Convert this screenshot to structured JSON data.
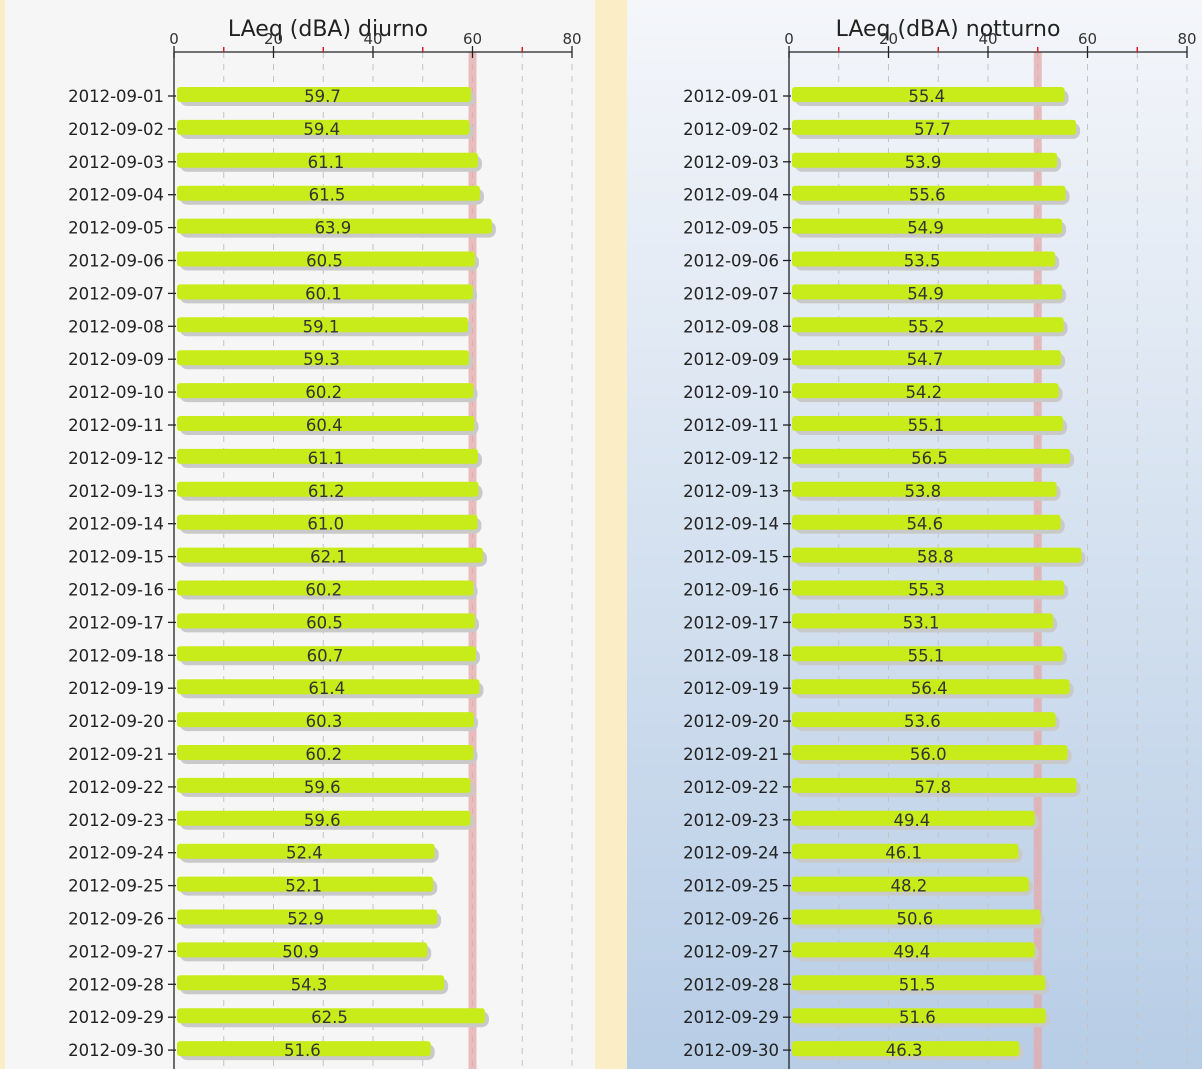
{
  "chart_data": [
    {
      "type": "bar",
      "orientation": "horizontal",
      "title": "LAeq (dBA) diurno",
      "xlim": [
        0,
        80
      ],
      "xticks": [
        "0",
        "20",
        "40",
        "60",
        "80"
      ],
      "threshold": 60,
      "grid": true,
      "categories": [
        "2012-09-01",
        "2012-09-02",
        "2012-09-03",
        "2012-09-04",
        "2012-09-05",
        "2012-09-06",
        "2012-09-07",
        "2012-09-08",
        "2012-09-09",
        "2012-09-10",
        "2012-09-11",
        "2012-09-12",
        "2012-09-13",
        "2012-09-14",
        "2012-09-15",
        "2012-09-16",
        "2012-09-17",
        "2012-09-18",
        "2012-09-19",
        "2012-09-20",
        "2012-09-21",
        "2012-09-22",
        "2012-09-23",
        "2012-09-24",
        "2012-09-25",
        "2012-09-26",
        "2012-09-27",
        "2012-09-28",
        "2012-09-29",
        "2012-09-30"
      ],
      "values": [
        59.7,
        59.4,
        61.1,
        61.5,
        63.9,
        60.5,
        60.1,
        59.1,
        59.3,
        60.2,
        60.4,
        61.1,
        61.2,
        61.0,
        62.1,
        60.2,
        60.5,
        60.7,
        61.4,
        60.3,
        60.2,
        59.6,
        59.6,
        52.4,
        52.1,
        52.9,
        50.9,
        54.3,
        62.5,
        51.6
      ],
      "labels": [
        "59.7",
        "59.4",
        "61.1",
        "61.5",
        "63.9",
        "60.5",
        "60.1",
        "59.1",
        "59.3",
        "60.2",
        "60.4",
        "61.1",
        "61.2",
        "61.0",
        "62.1",
        "60.2",
        "60.5",
        "60.7",
        "61.4",
        "60.3",
        "60.2",
        "59.6",
        "59.6",
        "52.4",
        "52.1",
        "52.9",
        "50.9",
        "54.3",
        "62.5",
        "51.6"
      ]
    },
    {
      "type": "bar",
      "orientation": "horizontal",
      "title": "LAeq (dBA) notturno",
      "xlim": [
        0,
        80
      ],
      "xticks": [
        "0",
        "20",
        "40",
        "60",
        "80"
      ],
      "threshold": 50,
      "grid": true,
      "categories": [
        "2012-09-01",
        "2012-09-02",
        "2012-09-03",
        "2012-09-04",
        "2012-09-05",
        "2012-09-06",
        "2012-09-07",
        "2012-09-08",
        "2012-09-09",
        "2012-09-10",
        "2012-09-11",
        "2012-09-12",
        "2012-09-13",
        "2012-09-14",
        "2012-09-15",
        "2012-09-16",
        "2012-09-17",
        "2012-09-18",
        "2012-09-19",
        "2012-09-20",
        "2012-09-21",
        "2012-09-22",
        "2012-09-23",
        "2012-09-24",
        "2012-09-25",
        "2012-09-26",
        "2012-09-27",
        "2012-09-28",
        "2012-09-29",
        "2012-09-30"
      ],
      "values": [
        55.4,
        57.7,
        53.9,
        55.6,
        54.9,
        53.5,
        54.9,
        55.2,
        54.7,
        54.2,
        55.1,
        56.5,
        53.8,
        54.6,
        58.8,
        55.3,
        53.1,
        55.1,
        56.4,
        53.6,
        56.0,
        57.8,
        49.4,
        46.1,
        48.2,
        50.6,
        49.4,
        51.5,
        51.6,
        46.3
      ],
      "labels": [
        "55.4",
        "57.7",
        "53.9",
        "55.6",
        "54.9",
        "53.5",
        "54.9",
        "55.2",
        "54.7",
        "54.2",
        "55.1",
        "56.5",
        "53.8",
        "54.6",
        "58.8",
        "55.3",
        "53.1",
        "55.1",
        "56.4",
        "53.6",
        "56.0",
        "57.8",
        "49.4",
        "46.1",
        "48.2",
        "50.6",
        "49.4",
        "51.5",
        "51.6",
        "46.3"
      ]
    }
  ],
  "colors": {
    "bar": "#c8ec1a",
    "bar_shadow": "#c9c9c9",
    "threshold": "#e4aaaa",
    "axis": "#222222",
    "tick_red": "#e02020",
    "grid": "#c4c4c4",
    "day_background": "#f6f6f6",
    "night_background_top": "#f4f6fa",
    "night_background_bottom": "#b7cde6"
  }
}
